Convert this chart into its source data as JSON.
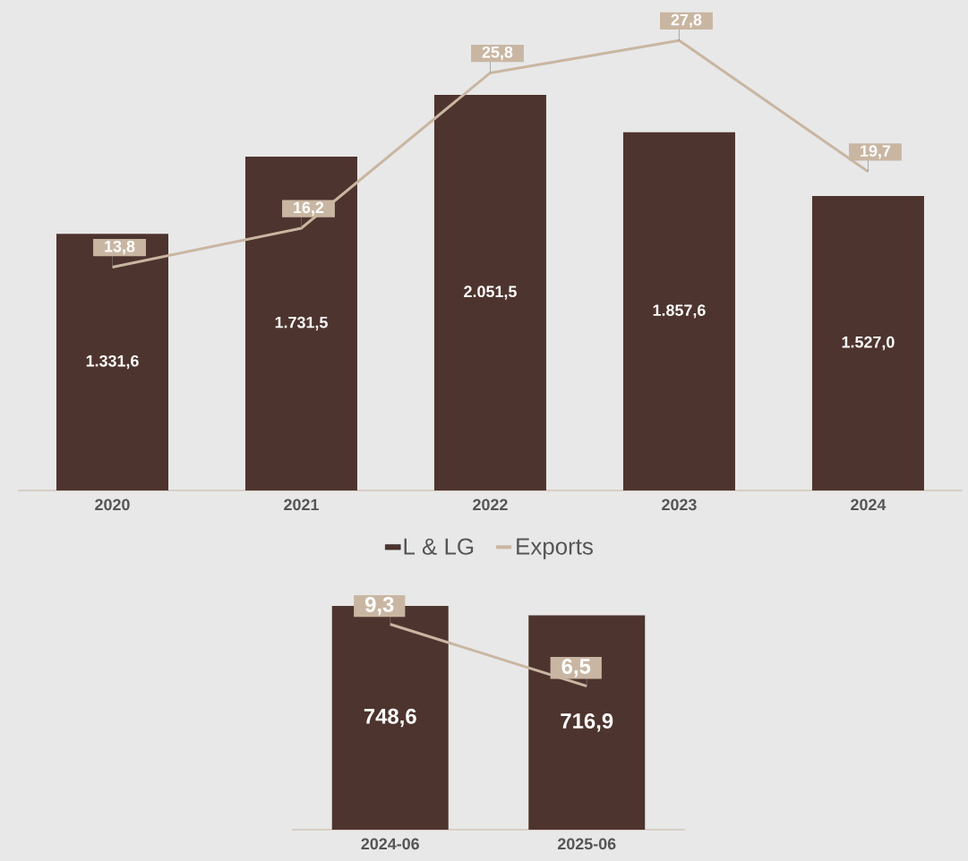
{
  "chart_data": [
    {
      "type": "bar",
      "categories": [
        "2020",
        "2021",
        "2022",
        "2023",
        "2024"
      ],
      "series": [
        {
          "name": "L & LG",
          "color": "#4e342e",
          "values": [
            1331.6,
            1731.5,
            2051.5,
            1857.6,
            1527.0
          ],
          "value_labels": [
            "1.331,6",
            "1.731,5",
            "2.051,5",
            "1.857,6",
            "1.527,0"
          ]
        },
        {
          "name": "Exports",
          "type": "line",
          "axis": "y2",
          "color": "#c9b6a2",
          "values": [
            13.8,
            16.2,
            25.8,
            27.8,
            19.7
          ],
          "value_labels": [
            "13,8",
            "16,2",
            "25,8",
            "27,8",
            "19,7"
          ]
        }
      ],
      "legend": "bottom"
    },
    {
      "type": "bar",
      "categories": [
        "2024-06",
        "2025-06"
      ],
      "series": [
        {
          "color": "#4e342e",
          "values": [
            748.6,
            716.9
          ],
          "value_labels": [
            "748,6",
            "716,9"
          ]
        },
        {
          "type": "line",
          "axis": "y2",
          "color": "#c9b6a2",
          "values": [
            9.3,
            6.5
          ],
          "value_labels": [
            "9,3",
            "6,5"
          ]
        }
      ]
    }
  ]
}
